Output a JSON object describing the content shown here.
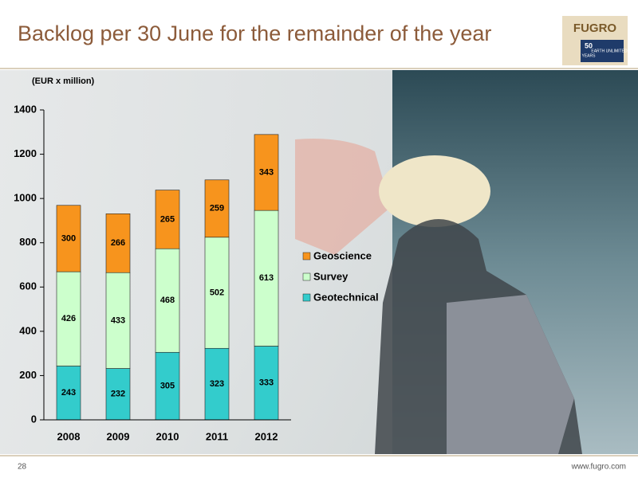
{
  "header": {
    "title": "Backlog per 30 June for the remainder of the year"
  },
  "logo": {
    "name": "FUGRO",
    "badge": "50",
    "badge_note": "YEARS",
    "tagline": "EARTH UNLIMITED"
  },
  "chart_data": {
    "type": "stacked-bar",
    "ylabel": "(EUR x million)",
    "categories": [
      "2008",
      "2009",
      "2010",
      "2011",
      "2012"
    ],
    "series": [
      {
        "name": "Geotechnical",
        "color": "#33cccc",
        "values": [
          243,
          232,
          305,
          323,
          333
        ]
      },
      {
        "name": "Survey",
        "color": "#ccffcc",
        "values": [
          426,
          433,
          468,
          502,
          613
        ]
      },
      {
        "name": "Geoscience",
        "color": "#f7941d",
        "values": [
          300,
          266,
          265,
          259,
          343
        ]
      }
    ],
    "ylim": [
      0,
      1400
    ],
    "yticks": [
      0,
      200,
      400,
      600,
      800,
      1000,
      1200,
      1400
    ],
    "legend": "right"
  },
  "footer": {
    "page": "28",
    "url": "www.fugro.com"
  }
}
